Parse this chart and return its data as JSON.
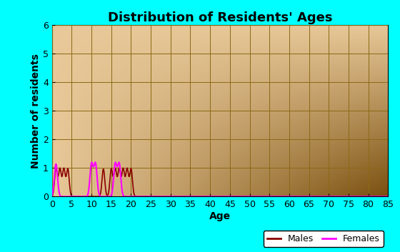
{
  "title": "Distribution of Residents' Ages",
  "xlabel": "Age",
  "ylabel": "Number of residents",
  "xlim": [
    0,
    85
  ],
  "ylim": [
    0,
    6
  ],
  "xticks": [
    0,
    5,
    10,
    15,
    20,
    25,
    30,
    35,
    40,
    45,
    50,
    55,
    60,
    65,
    70,
    75,
    80,
    85
  ],
  "yticks": [
    0,
    1,
    2,
    3,
    4,
    5,
    6
  ],
  "background_color": "#00FFFF",
  "plot_bg_top_left": "#DEB887",
  "plot_bg_bottom_right": "#8B6914",
  "grid_color": "#8B6914",
  "males_color": "#8B0000",
  "females_color": "#FF00FF",
  "title_fontsize": 13,
  "label_fontsize": 10,
  "tick_fontsize": 9,
  "males_peaks": [
    1,
    2,
    3,
    4,
    13,
    15,
    16,
    17,
    18,
    19,
    20
  ],
  "females_peaks": [
    1,
    10,
    11,
    16,
    17
  ]
}
